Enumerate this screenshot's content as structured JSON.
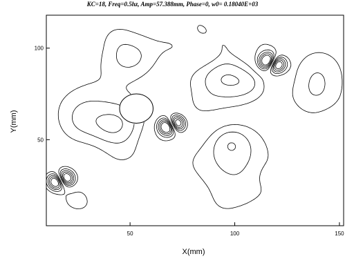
{
  "chart_data": {
    "type": "contour",
    "title": "KC=18, Freq=0.5hz, Amp=57.388mm, Phase=0, w0= 0.18040E+03",
    "xlabel": "X(mm)",
    "ylabel": "Y(mm)",
    "xlim": [
      10,
      152
    ],
    "ylim": [
      3,
      118
    ],
    "xticks": [
      50,
      100,
      150
    ],
    "yticks": [
      50,
      100
    ],
    "xtick_labels": [
      "50",
      "100",
      "150"
    ],
    "ytick_labels": [
      "50",
      "100"
    ],
    "grid": false,
    "cylinder": {
      "cx": 53,
      "cy": 67,
      "r": 8
    },
    "vortex_centers": [
      {
        "x": 70,
        "y": 58
      },
      {
        "x": 118,
        "y": 92
      },
      {
        "x": 17,
        "y": 28
      }
    ]
  }
}
